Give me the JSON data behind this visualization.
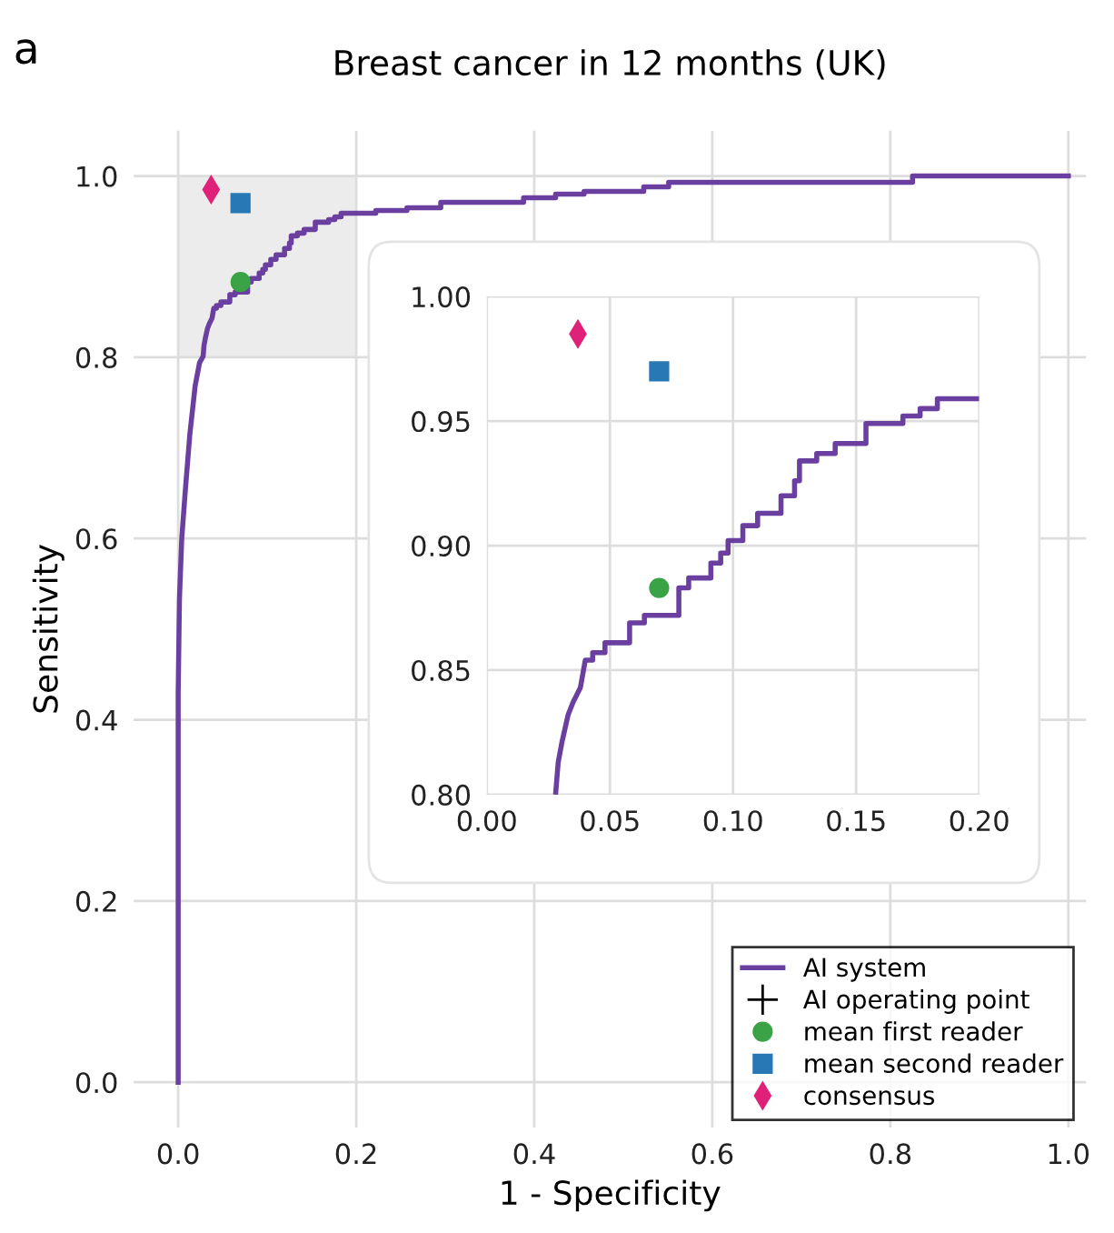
{
  "chart_data": [
    {
      "type": "line",
      "title": "Breast cancer in 12 months (UK)",
      "xlabel": "1 - Specificity",
      "ylabel": "Sensitivity",
      "annotations": [
        "a"
      ],
      "xlim": [
        -0.05,
        1.02
      ],
      "ylim": [
        -0.05,
        1.05
      ],
      "xticks": [
        {
          "value": 0,
          "label": "0.0"
        },
        0.2,
        0.4,
        0.6,
        0.8,
        {
          "value": 1,
          "label": "1.0"
        }
      ],
      "yticks": [
        {
          "value": 0,
          "label": "0.0"
        },
        0.2,
        0.4,
        0.6,
        0.8,
        {
          "value": 1,
          "label": "1.0"
        }
      ],
      "grid": true,
      "legend": "bottom right",
      "series": [
        {
          "name": "AI system",
          "marker": "none",
          "color": "#6a3fa0",
          "x": [
            0.0,
            0.0,
            0.0014,
            0.004,
            0.008,
            0.013,
            0.019,
            0.024,
            0.028,
            0.029,
            0.0305,
            0.033,
            0.035,
            0.038,
            0.04,
            0.043,
            0.043,
            0.048,
            0.048,
            0.058,
            0.058,
            0.064,
            0.064,
            0.078,
            0.078,
            0.082,
            0.082,
            0.091,
            0.091,
            0.095,
            0.095,
            0.098,
            0.098,
            0.104,
            0.104,
            0.11,
            0.11,
            0.1195,
            0.1195,
            0.125,
            0.125,
            0.127,
            0.127,
            0.134,
            0.134,
            0.1415,
            0.1415,
            0.154,
            0.154,
            0.169,
            0.169,
            0.176,
            0.176,
            0.183,
            0.183,
            0.222,
            0.222,
            0.257,
            0.257,
            0.295,
            0.295,
            0.388,
            0.388,
            0.424,
            0.424,
            0.456,
            0.456,
            0.523,
            0.523,
            0.551,
            0.551,
            0.825,
            0.825,
            1.0
          ],
          "values": [
            0.0,
            0.43,
            0.533,
            0.6,
            0.653,
            0.714,
            0.768,
            0.794,
            0.801,
            0.813,
            0.821,
            0.832,
            0.837,
            0.843,
            0.854,
            0.854,
            0.857,
            0.857,
            0.861,
            0.861,
            0.869,
            0.869,
            0.872,
            0.872,
            0.883,
            0.883,
            0.887,
            0.887,
            0.893,
            0.893,
            0.897,
            0.897,
            0.902,
            0.902,
            0.908,
            0.908,
            0.913,
            0.913,
            0.92,
            0.92,
            0.926,
            0.926,
            0.934,
            0.934,
            0.937,
            0.937,
            0.941,
            0.941,
            0.949,
            0.949,
            0.952,
            0.952,
            0.955,
            0.955,
            0.959,
            0.959,
            0.962,
            0.962,
            0.965,
            0.965,
            0.971,
            0.971,
            0.976,
            0.976,
            0.98,
            0.98,
            0.983,
            0.983,
            0.988,
            0.988,
            0.993,
            0.993,
            1.0,
            1.0
          ]
        },
        {
          "name": "AI operating point",
          "type": "scatter",
          "marker": "cross",
          "color": "#000000"
        },
        {
          "name": "mean first reader",
          "type": "scatter",
          "marker": "circle",
          "color": "#3aa345",
          "x": [
            0.07
          ],
          "values": [
            0.883
          ]
        },
        {
          "name": "mean second reader",
          "type": "scatter",
          "marker": "square",
          "color": "#2878b5",
          "x": [
            0.07
          ],
          "values": [
            0.97
          ]
        },
        {
          "name": "consensus",
          "type": "scatter",
          "marker": "diamond",
          "color": "#e0217a",
          "x": [
            0.037
          ],
          "values": [
            0.985
          ]
        }
      ]
    },
    {
      "type": "line",
      "xlim": [
        0.0,
        0.2
      ],
      "ylim": [
        0.8,
        1.0
      ],
      "xticks": [
        {
          "value": 0,
          "label": "0.00"
        },
        0.05,
        {
          "value": 0.1,
          "label": "0.10"
        },
        0.15,
        {
          "value": 0.2,
          "label": "0.20"
        }
      ],
      "yticks": [
        {
          "value": 0.8,
          "label": "0.80"
        },
        0.85,
        {
          "value": 0.9,
          "label": "0.90"
        },
        0.95,
        {
          "value": 1,
          "label": "1.00"
        }
      ],
      "grid": true,
      "series": [
        {
          "marker": "none",
          "color": "#6a3fa0",
          "x": [
            0.028,
            0.029,
            0.0305,
            0.033,
            0.035,
            0.038,
            0.04,
            0.043,
            0.043,
            0.048,
            0.048,
            0.058,
            0.058,
            0.064,
            0.064,
            0.078,
            0.078,
            0.082,
            0.082,
            0.091,
            0.091,
            0.095,
            0.095,
            0.098,
            0.098,
            0.104,
            0.104,
            0.11,
            0.11,
            0.1195,
            0.1195,
            0.125,
            0.125,
            0.127,
            0.127,
            0.134,
            0.134,
            0.1415,
            0.1415,
            0.154,
            0.154,
            0.169,
            0.169,
            0.176,
            0.176,
            0.183,
            0.183,
            0.199
          ],
          "values": [
            0.801,
            0.813,
            0.821,
            0.832,
            0.837,
            0.843,
            0.854,
            0.854,
            0.857,
            0.857,
            0.861,
            0.861,
            0.869,
            0.869,
            0.872,
            0.872,
            0.883,
            0.883,
            0.887,
            0.887,
            0.893,
            0.893,
            0.897,
            0.897,
            0.902,
            0.902,
            0.908,
            0.908,
            0.913,
            0.913,
            0.92,
            0.92,
            0.926,
            0.926,
            0.934,
            0.934,
            0.937,
            0.937,
            0.941,
            0.941,
            0.949,
            0.949,
            0.952,
            0.952,
            0.955,
            0.955,
            0.959,
            0.959
          ]
        },
        {
          "type": "scatter",
          "marker": "circle",
          "color": "#3aa345",
          "x": [
            0.07
          ],
          "values": [
            0.883
          ]
        },
        {
          "type": "scatter",
          "marker": "square",
          "color": "#2878b5",
          "x": [
            0.07
          ],
          "values": [
            0.97
          ]
        },
        {
          "type": "scatter",
          "marker": "diamond",
          "color": "#e0217a",
          "x": [
            0.037
          ],
          "values": [
            0.985
          ]
        }
      ]
    }
  ]
}
